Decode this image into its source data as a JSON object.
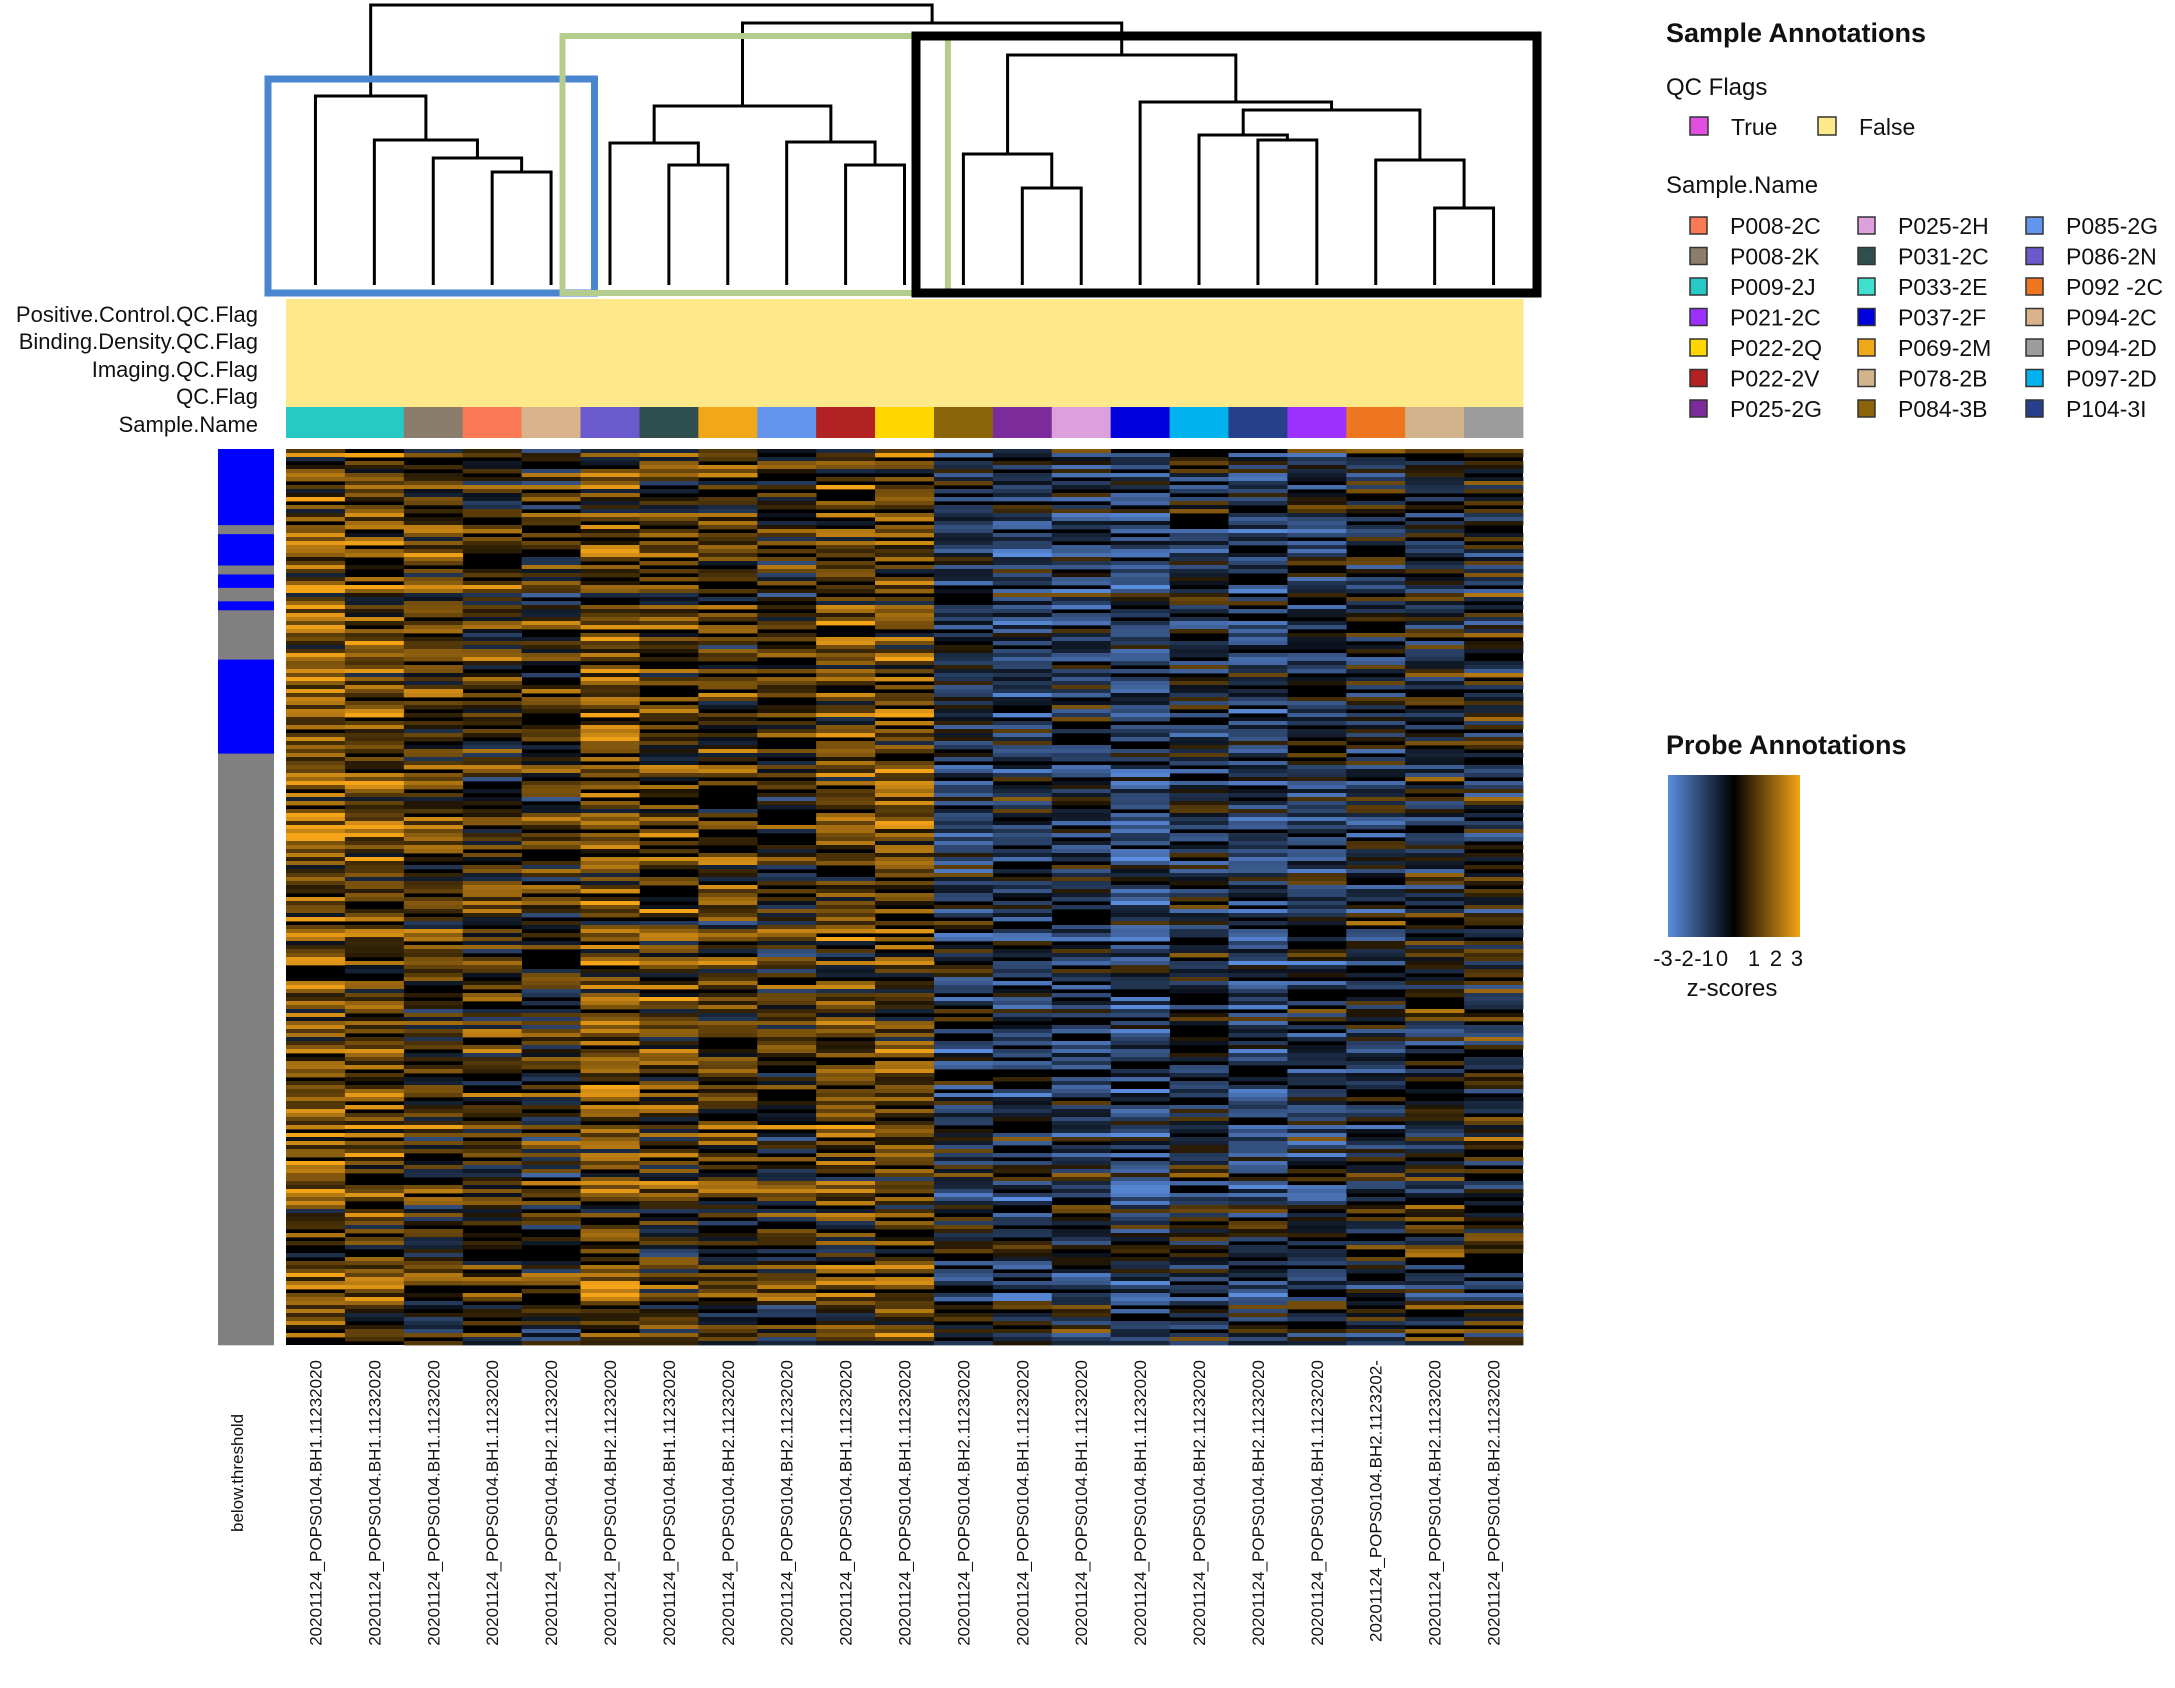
{
  "chart_data": {
    "type": "heatmap",
    "annotation_labels": [
      "Positive.Control.QC.Flag",
      "Binding.Density.QC.Flag",
      "Imaging.QC.Flag",
      "QC.Flag",
      "Sample.Name"
    ],
    "row_annotation_label": "below.threshold",
    "row_annotation_colors": {
      "above": "#0000ff",
      "below": "#808080"
    },
    "row_annotation_blocks": [
      {
        "from": 0.0,
        "to": 0.085,
        "value": "above"
      },
      {
        "from": 0.085,
        "to": 0.095,
        "value": "below"
      },
      {
        "from": 0.095,
        "to": 0.13,
        "value": "above"
      },
      {
        "from": 0.13,
        "to": 0.14,
        "value": "below"
      },
      {
        "from": 0.14,
        "to": 0.155,
        "value": "above"
      },
      {
        "from": 0.155,
        "to": 0.17,
        "value": "below"
      },
      {
        "from": 0.17,
        "to": 0.18,
        "value": "above"
      },
      {
        "from": 0.18,
        "to": 0.235,
        "value": "below"
      },
      {
        "from": 0.235,
        "to": 0.34,
        "value": "above"
      },
      {
        "from": 0.34,
        "to": 1.0,
        "value": "below"
      }
    ],
    "columns": [
      {
        "label": "20201124_POPS0104.BH1.11232020",
        "sample": "P009-2J",
        "color": "#26c9c3",
        "qc_flag": "False"
      },
      {
        "label": "20201124_POPS0104.BH1.11232020",
        "sample": "P009-2J",
        "color": "#26c9c3",
        "qc_flag": "False"
      },
      {
        "label": "20201124_POPS0104.BH1.11232020",
        "sample": "P008-2K",
        "color": "#8b7d6b",
        "qc_flag": "False"
      },
      {
        "label": "20201124_POPS0104.BH1.11232020",
        "sample": "P008-2C",
        "color": "#fa7a55",
        "qc_flag": "False"
      },
      {
        "label": "20201124_POPS0104.BH2.11232020",
        "sample": "P094-2C",
        "color": "#d9b38c",
        "qc_flag": "False"
      },
      {
        "label": "20201124_POPS0104.BH2.11232020",
        "sample": "P086-2N",
        "color": "#6a5acd",
        "qc_flag": "False"
      },
      {
        "label": "20201124_POPS0104.BH1.11232020",
        "sample": "P031-2C",
        "color": "#2f4f4f",
        "qc_flag": "False"
      },
      {
        "label": "20201124_POPS0104.BH2.11232020",
        "sample": "P069-2M",
        "color": "#f0a818",
        "qc_flag": "False"
      },
      {
        "label": "20201124_POPS0104.BH2.11232020",
        "sample": "P085-2G",
        "color": "#6495ed",
        "qc_flag": "False"
      },
      {
        "label": "20201124_POPS0104.BH1.11232020",
        "sample": "P022-2V",
        "color": "#b22222",
        "qc_flag": "False"
      },
      {
        "label": "20201124_POPS0104.BH1.11232020",
        "sample": "P022-2Q",
        "color": "#ffd700",
        "qc_flag": "False"
      },
      {
        "label": "20201124_POPS0104.BH2.11232020",
        "sample": "P084-3B",
        "color": "#8b6508",
        "qc_flag": "False"
      },
      {
        "label": "20201124_POPS0104.BH1.11232020",
        "sample": "P025-2G",
        "color": "#7b2c9a",
        "qc_flag": "False"
      },
      {
        "label": "20201124_POPS0104.BH1.11232020",
        "sample": "P025-2H",
        "color": "#dda0dd",
        "qc_flag": "False"
      },
      {
        "label": "20201124_POPS0104.BH1.11232020",
        "sample": "P037-2F",
        "color": "#0000dd",
        "qc_flag": "False"
      },
      {
        "label": "20201124_POPS0104.BH2.11232020",
        "sample": "P097-2D",
        "color": "#00b2ee",
        "qc_flag": "False"
      },
      {
        "label": "20201124_POPS0104.BH2.11232020",
        "sample": "P104-3I",
        "color": "#27408b",
        "qc_flag": "False"
      },
      {
        "label": "20201124_POPS0104.BH1.11232020",
        "sample": "P021-2C",
        "color": "#9b30ff",
        "qc_flag": "False"
      },
      {
        "label": "20201124_POPS0104.BH2.1123202-",
        "sample": "P092 -2C",
        "color": "#ee7621",
        "qc_flag": "False"
      },
      {
        "label": "20201124_POPS0104.BH2.11232020",
        "sample": "P078-2B",
        "color": "#d2b48c",
        "qc_flag": "False"
      },
      {
        "label": "20201124_POPS0104.BH2.11232020",
        "sample": "P094-2D",
        "color": "#9c9c9c",
        "qc_flag": "False"
      }
    ],
    "cluster_boxes": [
      {
        "from_col": 0,
        "to_col": 4,
        "color": "#4a86d0"
      },
      {
        "from_col": 5,
        "to_col": 10,
        "color": "#b4cc8c"
      },
      {
        "from_col": 11,
        "to_col": 20,
        "color": "#000000"
      }
    ],
    "column_clusters": [
      [
        0,
        1,
        2,
        3,
        4
      ],
      [
        5,
        6,
        7,
        8,
        9,
        10
      ],
      [
        11,
        12,
        13,
        14,
        15,
        16,
        17,
        18,
        19,
        20
      ]
    ],
    "color_scale": {
      "min": -3,
      "max": 3,
      "low": "#5b8ddf",
      "mid": "#000000",
      "high": "#f5a418"
    },
    "legends": {
      "sample_annotations_title": "Sample Annotations",
      "qc_flags_title": "QC Flags",
      "qc_flags": [
        {
          "label": "True",
          "color": "#e04fe0"
        },
        {
          "label": "False",
          "color": "#fde98a"
        }
      ],
      "sample_name_title": "Sample.Name",
      "sample_names": [
        {
          "label": "P008-2C",
          "color": "#fa7a55"
        },
        {
          "label": "P008-2K",
          "color": "#8b7d6b"
        },
        {
          "label": "P009-2J",
          "color": "#26c9c3"
        },
        {
          "label": "P021-2C",
          "color": "#9b30ff"
        },
        {
          "label": "P022-2Q",
          "color": "#ffd700"
        },
        {
          "label": "P022-2V",
          "color": "#b22222"
        },
        {
          "label": "P025-2G",
          "color": "#7b2c9a"
        },
        {
          "label": "P025-2H",
          "color": "#dda0dd"
        },
        {
          "label": "P031-2C",
          "color": "#2f4f4f"
        },
        {
          "label": "P033-2E",
          "color": "#40e0d0"
        },
        {
          "label": "P037-2F",
          "color": "#0000dd"
        },
        {
          "label": "P069-2M",
          "color": "#f0a818"
        },
        {
          "label": "P078-2B",
          "color": "#d2b48c"
        },
        {
          "label": "P084-3B",
          "color": "#8b6508"
        },
        {
          "label": "P085-2G",
          "color": "#6495ed"
        },
        {
          "label": "P086-2N",
          "color": "#6a5acd"
        },
        {
          "label": "P092 -2C",
          "color": "#ee7621"
        },
        {
          "label": "P094-2C",
          "color": "#d9b38c"
        },
        {
          "label": "P094-2D",
          "color": "#9c9c9c"
        },
        {
          "label": "P097-2D",
          "color": "#00b2ee"
        },
        {
          "label": "P104-3I",
          "color": "#27408b"
        }
      ],
      "probe_annotations_title": "Probe Annotations",
      "scale_ticks": [
        "-3",
        "-2",
        "-1",
        "0",
        "1",
        "2",
        "3"
      ],
      "scale_label": "z-scores"
    }
  }
}
